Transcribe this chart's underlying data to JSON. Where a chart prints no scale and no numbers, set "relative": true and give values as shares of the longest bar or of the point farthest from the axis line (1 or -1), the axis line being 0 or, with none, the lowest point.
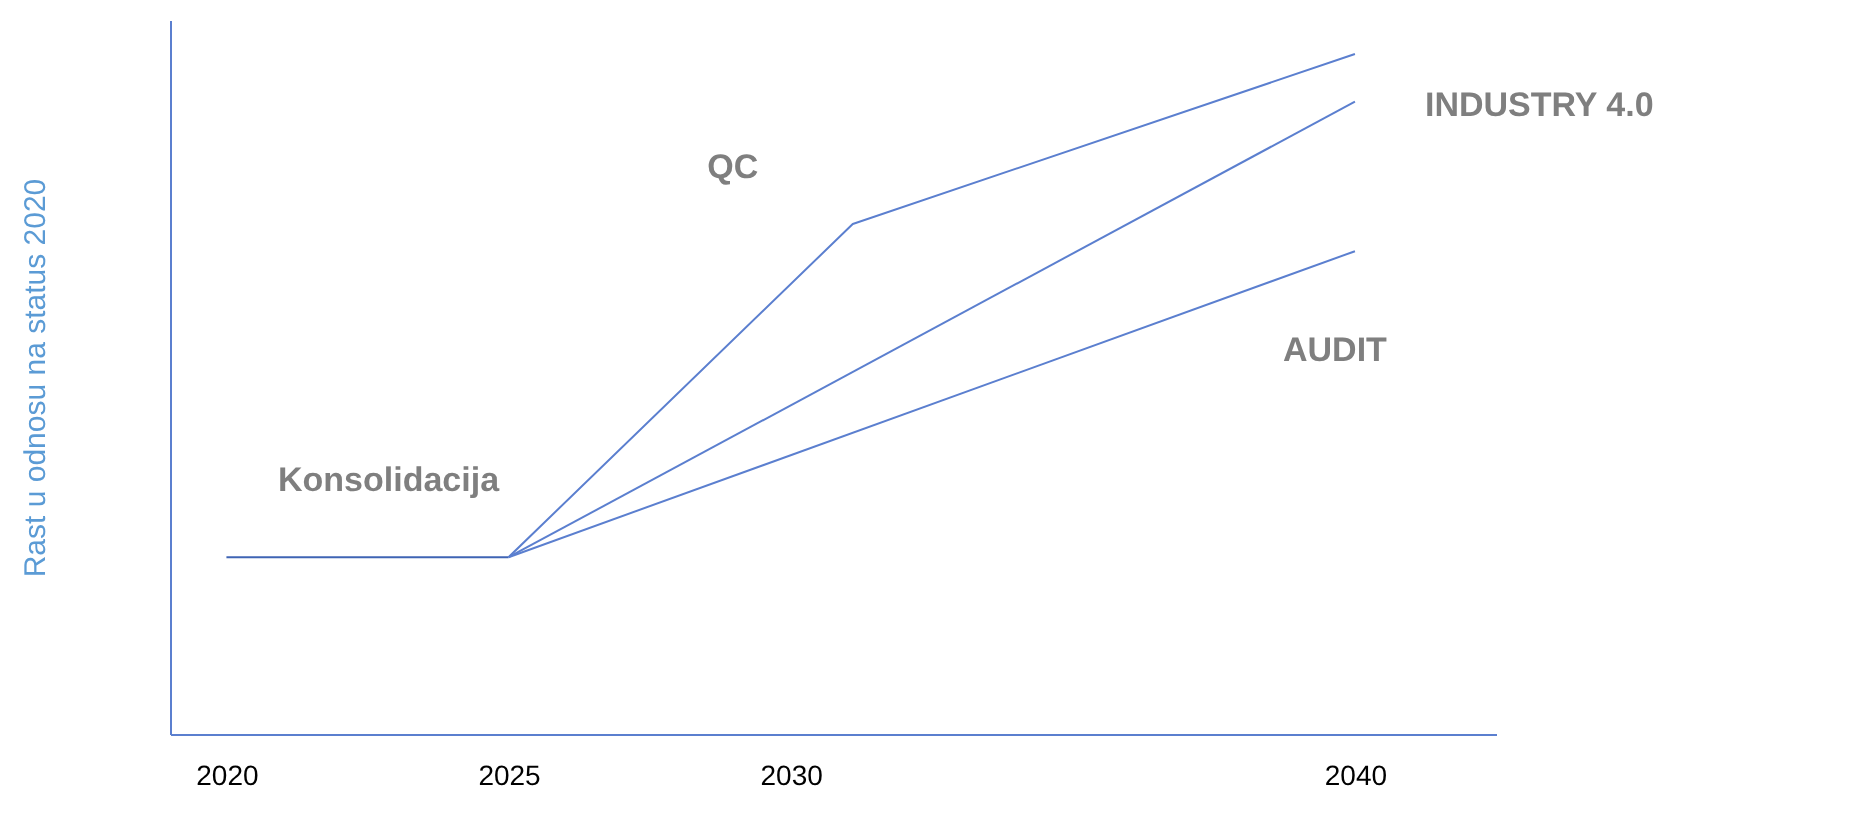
{
  "chart_data": {
    "type": "line",
    "ylabel": "Rast u odnosu na status 2020",
    "relative": true,
    "xlim": [
      2019,
      2042.5
    ],
    "xticks": [
      2020,
      2025,
      2030,
      2040
    ],
    "grid": false,
    "legend": false,
    "marker": "none",
    "line_style": "solid",
    "series": [
      {
        "name": "Konsolidacija",
        "color": "#3f64b4",
        "x": [
          2020,
          2025
        ],
        "values": [
          0.26,
          0.26
        ]
      },
      {
        "name": "QC",
        "color": "#5b7fcf",
        "x": [
          2025,
          2031.1,
          2040
        ],
        "values": [
          0.26,
          0.75,
          1
        ]
      },
      {
        "name": "INDUSTRY 4.0",
        "color": "#5b7fcf",
        "x": [
          2025,
          2040
        ],
        "values": [
          0.26,
          0.93
        ]
      },
      {
        "name": "AUDIT",
        "color": "#5b7fcf",
        "x": [
          2025,
          2040
        ],
        "values": [
          0.26,
          0.71
        ]
      }
    ]
  }
}
